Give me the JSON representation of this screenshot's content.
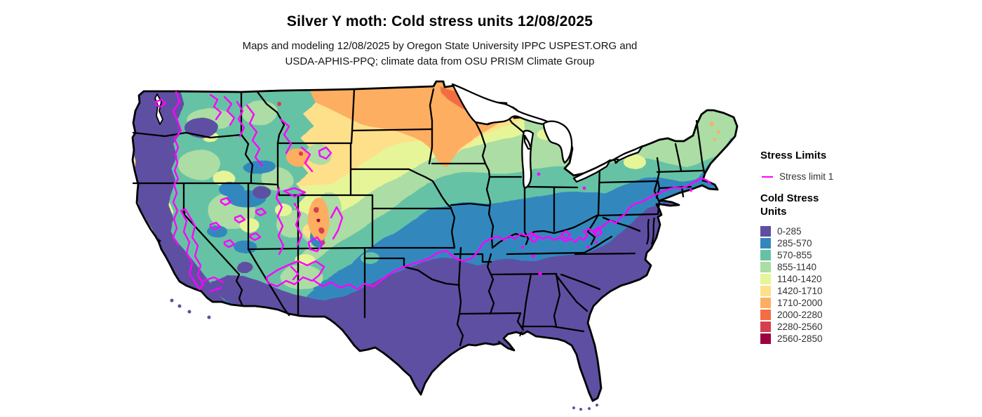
{
  "header": {
    "title": "Silver Y moth: Cold stress units 12/08/2025",
    "subtitle_line1": "Maps and modeling 12/08/2025 by Oregon State University IPPC USPEST.ORG and",
    "subtitle_line2": "USDA-APHIS-PPQ; climate data from OSU PRISM Climate Group"
  },
  "legend": {
    "stress_limits_title": "Stress Limits",
    "stress_limit_label": "Stress limit 1",
    "stress_limit_color": "#ff00ff",
    "units_title_line1": "Cold Stress",
    "units_title_line2": "Units",
    "classes": [
      {
        "range": "0-285",
        "color": "#5e4fa2"
      },
      {
        "range": "285-570",
        "color": "#3288bd"
      },
      {
        "range": "570-855",
        "color": "#66c2a5"
      },
      {
        "range": "855-1140",
        "color": "#abdda4"
      },
      {
        "range": "1140-1420",
        "color": "#e6f598"
      },
      {
        "range": "1420-1710",
        "color": "#fee08b"
      },
      {
        "range": "1710-2000",
        "color": "#fdae61"
      },
      {
        "range": "2000-2280",
        "color": "#f46d43"
      },
      {
        "range": "2280-2560",
        "color": "#d53e4f"
      },
      {
        "range": "2560-2850",
        "color": "#9e0142"
      }
    ]
  },
  "map": {
    "region": "Contiguous United States",
    "layer": "Cold stress units raster (PRISM climate data)",
    "overlay": "Stress limit 1 contour"
  }
}
